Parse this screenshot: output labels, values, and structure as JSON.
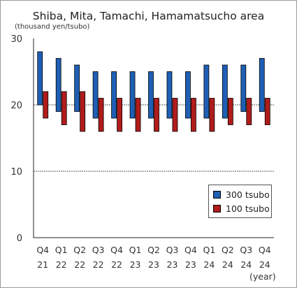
{
  "chart_data": {
    "type": "bar",
    "title": "Shiba, Mita, Tamachi, Hamamatsucho area",
    "ylabel": "(thousand yen/tsubo)",
    "xlabel": "(year)",
    "ylim": [
      0,
      30
    ],
    "yticks": [
      0,
      10,
      20,
      30
    ],
    "grid": "dashed at 10 and 20",
    "legend_position": "lower-right",
    "categories": [
      {
        "q": "Q4",
        "y": "21"
      },
      {
        "q": "Q1",
        "y": "22"
      },
      {
        "q": "Q2",
        "y": "22"
      },
      {
        "q": "Q3",
        "y": "22"
      },
      {
        "q": "Q4",
        "y": "22"
      },
      {
        "q": "Q1",
        "y": "23"
      },
      {
        "q": "Q2",
        "y": "23"
      },
      {
        "q": "Q3",
        "y": "23"
      },
      {
        "q": "Q4",
        "y": "23"
      },
      {
        "q": "Q1",
        "y": "24"
      },
      {
        "q": "Q2",
        "y": "24"
      },
      {
        "q": "Q3",
        "y": "24"
      },
      {
        "q": "Q4",
        "y": "24"
      }
    ],
    "series": [
      {
        "name": "300 tsubo",
        "color": "#1f5fb4",
        "low": [
          20,
          19,
          19,
          18,
          18,
          18,
          18,
          18,
          18,
          18,
          18,
          19,
          19
        ],
        "high": [
          28,
          27,
          26,
          25,
          25,
          25,
          25,
          25,
          25,
          26,
          26,
          26,
          27
        ]
      },
      {
        "name": "100 tsubo",
        "color": "#b01c1c",
        "low": [
          18,
          17,
          16,
          16,
          16,
          16,
          16,
          16,
          16,
          16,
          17,
          17,
          17
        ],
        "high": [
          22,
          22,
          22,
          21,
          21,
          21,
          21,
          21,
          21,
          21,
          21,
          21,
          21
        ]
      }
    ]
  }
}
